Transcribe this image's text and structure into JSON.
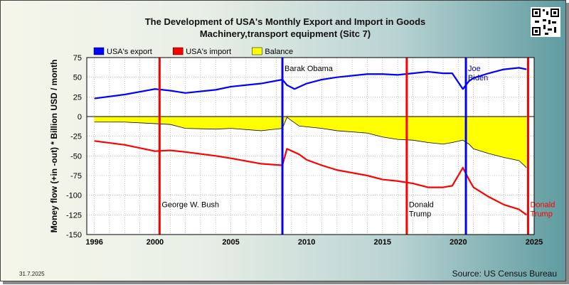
{
  "title_line1": "The Development of USA's Monthly Export and Import in Goods",
  "title_line2": "Machinery,transport equipment (Sitc 7)",
  "date_stamp": "31.7.2025",
  "source": "Source: US Census Bureau",
  "chart_data": {
    "type": "line",
    "title": "The Development of USA's Monthly Export and Import in Goods Machinery,transport equipment (Sitc 7)",
    "ylabel": "Money flow (+in -out) * Billion USD / month",
    "xlim": [
      1995.5,
      2025
    ],
    "ylim": [
      -150,
      75
    ],
    "x_ticks": [
      1996,
      2000,
      2005,
      2010,
      2015,
      2020,
      2025
    ],
    "y_ticks": [
      75,
      50,
      25,
      0,
      -25,
      -50,
      -75,
      -100,
      -125,
      -150
    ],
    "grid": true,
    "legend_position": "top-left",
    "series": [
      {
        "name": "USA's export",
        "color": "#0000ff",
        "points": [
          [
            1996,
            23
          ],
          [
            1998,
            28
          ],
          [
            2000,
            35
          ],
          [
            2001,
            33
          ],
          [
            2002,
            30
          ],
          [
            2004,
            34
          ],
          [
            2005,
            38
          ],
          [
            2007,
            42
          ],
          [
            2008.4,
            47
          ],
          [
            2008.7,
            40
          ],
          [
            2009.2,
            35
          ],
          [
            2010,
            42
          ],
          [
            2011,
            47
          ],
          [
            2012,
            50
          ],
          [
            2014,
            54
          ],
          [
            2015,
            54
          ],
          [
            2016,
            53
          ],
          [
            2017,
            55
          ],
          [
            2018,
            57
          ],
          [
            2019,
            55
          ],
          [
            2019.6,
            55
          ],
          [
            2020.3,
            35
          ],
          [
            2020.7,
            45
          ],
          [
            2021,
            49
          ],
          [
            2022,
            55
          ],
          [
            2023,
            60
          ],
          [
            2024,
            62
          ],
          [
            2024.5,
            60
          ]
        ]
      },
      {
        "name": "USA's import",
        "color": "#ff0000",
        "points": [
          [
            1996,
            -31
          ],
          [
            1998,
            -36
          ],
          [
            2000,
            -44
          ],
          [
            2001,
            -43
          ],
          [
            2002,
            -45
          ],
          [
            2004,
            -50
          ],
          [
            2005,
            -53
          ],
          [
            2007,
            -60
          ],
          [
            2008.4,
            -62
          ],
          [
            2008.7,
            -41
          ],
          [
            2009.5,
            -48
          ],
          [
            2010,
            -55
          ],
          [
            2011,
            -62
          ],
          [
            2012,
            -68
          ],
          [
            2014,
            -75
          ],
          [
            2015,
            -80
          ],
          [
            2016,
            -82
          ],
          [
            2017,
            -85
          ],
          [
            2018,
            -90
          ],
          [
            2019,
            -90
          ],
          [
            2019.6,
            -88
          ],
          [
            2020.3,
            -65
          ],
          [
            2020.7,
            -80
          ],
          [
            2021,
            -90
          ],
          [
            2022,
            -102
          ],
          [
            2023,
            -112
          ],
          [
            2024,
            -118
          ],
          [
            2024.5,
            -125
          ]
        ]
      },
      {
        "name": "Balance",
        "color": "#ffff00",
        "points": [
          [
            1996,
            -7
          ],
          [
            1998,
            -7
          ],
          [
            2000,
            -9
          ],
          [
            2001,
            -10
          ],
          [
            2002,
            -15
          ],
          [
            2004,
            -16
          ],
          [
            2005,
            -15
          ],
          [
            2007,
            -18
          ],
          [
            2008.4,
            -15
          ],
          [
            2008.7,
            -1
          ],
          [
            2009.5,
            -12
          ],
          [
            2010,
            -13
          ],
          [
            2011,
            -15
          ],
          [
            2012,
            -18
          ],
          [
            2014,
            -21
          ],
          [
            2015,
            -26
          ],
          [
            2016,
            -29
          ],
          [
            2017,
            -30
          ],
          [
            2018,
            -33
          ],
          [
            2019,
            -35
          ],
          [
            2019.6,
            -33
          ],
          [
            2020.3,
            -30
          ],
          [
            2020.7,
            -35
          ],
          [
            2021,
            -41
          ],
          [
            2022,
            -47
          ],
          [
            2023,
            -52
          ],
          [
            2024,
            -56
          ],
          [
            2024.5,
            -65
          ]
        ]
      }
    ],
    "markers": [
      {
        "x": 2000.3,
        "color": "#ff0000",
        "label": "George W. Bush",
        "label_y": -115
      },
      {
        "x": 2008.4,
        "color": "#0000ff",
        "label": "Barak Obama",
        "label_y": 58
      },
      {
        "x": 2016.6,
        "color": "#ff0000",
        "label": "Donald Trump",
        "label_y": -115
      },
      {
        "x": 2020.5,
        "color": "#0000ff",
        "label": "Joe Biden",
        "label_y": 58
      },
      {
        "x": 2024.6,
        "color": "#ff0000",
        "label": "Donald Trump",
        "label_y": -115
      }
    ]
  }
}
